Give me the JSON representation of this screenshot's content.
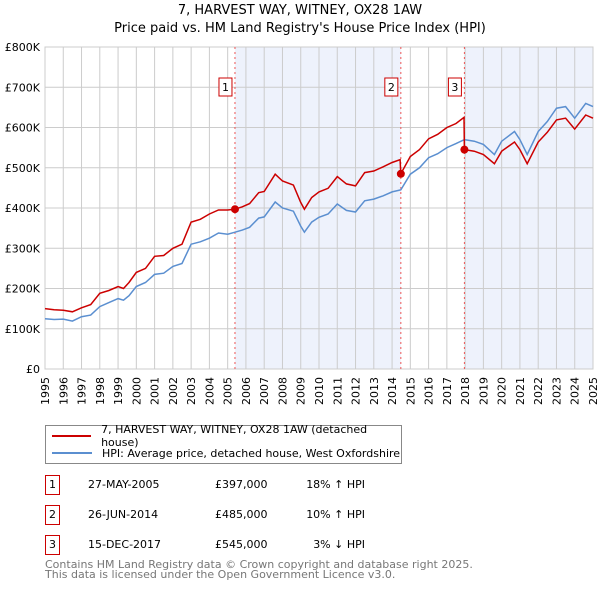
{
  "title": "7, HARVEST WAY, WITNEY, OX28 1AW",
  "subtitle": "Price paid vs. HM Land Registry's House Price Index (HPI)",
  "colors": {
    "property": "#cc0000",
    "hpi": "#5b8fd0",
    "shade": "#eef2fc",
    "grid": "#cccccc"
  },
  "chart_data": {
    "type": "line",
    "title": "Price paid vs. HM Land Registry's House Price Index (HPI)",
    "xlim": [
      1995,
      2025
    ],
    "ylim": [
      0,
      800000
    ],
    "grid": true,
    "y_ticks": [
      {
        "v": 0,
        "label": "£0"
      },
      {
        "v": 100000,
        "label": "£100K"
      },
      {
        "v": 200000,
        "label": "£200K"
      },
      {
        "v": 300000,
        "label": "£300K"
      },
      {
        "v": 400000,
        "label": "£400K"
      },
      {
        "v": 500000,
        "label": "£500K"
      },
      {
        "v": 600000,
        "label": "£600K"
      },
      {
        "v": 700000,
        "label": "£700K"
      },
      {
        "v": 800000,
        "label": "£800K"
      }
    ],
    "x_ticks": [
      "1995",
      "1996",
      "1997",
      "1998",
      "1999",
      "2000",
      "2001",
      "2002",
      "2003",
      "2004",
      "2005",
      "2006",
      "2007",
      "2008",
      "2009",
      "2010",
      "2011",
      "2012",
      "2013",
      "2014",
      "2015",
      "2016",
      "2017",
      "2018",
      "2019",
      "2020",
      "2021",
      "2022",
      "2023",
      "2024",
      "2025"
    ],
    "series": [
      {
        "name": "7, HARVEST WAY, WITNEY, OX28 1AW (detached house)",
        "key": "property",
        "points": [
          [
            1995,
            150
          ],
          [
            1995.5,
            147
          ],
          [
            1996,
            146
          ],
          [
            1996.5,
            142
          ],
          [
            1997,
            152
          ],
          [
            1997.5,
            160
          ],
          [
            1998,
            188
          ],
          [
            1998.5,
            195
          ],
          [
            1999,
            205
          ],
          [
            1999.3,
            200
          ],
          [
            1999.6,
            215
          ],
          [
            2000,
            240
          ],
          [
            2000.5,
            250
          ],
          [
            2001,
            280
          ],
          [
            2001.5,
            282
          ],
          [
            2002,
            300
          ],
          [
            2002.5,
            310
          ],
          [
            2003,
            365
          ],
          [
            2003.5,
            372
          ],
          [
            2004,
            385
          ],
          [
            2004.5,
            395
          ],
          [
            2005,
            395
          ],
          [
            2005.4,
            397
          ],
          [
            2005.8,
            403
          ],
          [
            2006.2,
            411
          ],
          [
            2006.7,
            438
          ],
          [
            2007,
            441
          ],
          [
            2007.6,
            484
          ],
          [
            2008,
            467
          ],
          [
            2008.6,
            457
          ],
          [
            2009,
            414
          ],
          [
            2009.2,
            397
          ],
          [
            2009.6,
            426
          ],
          [
            2010,
            440
          ],
          [
            2010.5,
            449
          ],
          [
            2011,
            478
          ],
          [
            2011.5,
            460
          ],
          [
            2012,
            455
          ],
          [
            2012.5,
            488
          ],
          [
            2013,
            492
          ],
          [
            2013.5,
            502
          ],
          [
            2014,
            513
          ],
          [
            2014.44,
            520
          ],
          [
            2014.48,
            485
          ],
          [
            2015,
            528
          ],
          [
            2015.5,
            545
          ],
          [
            2016,
            572
          ],
          [
            2016.5,
            583
          ],
          [
            2017,
            600
          ],
          [
            2017.5,
            610
          ],
          [
            2017.94,
            625
          ],
          [
            2017.96,
            545
          ],
          [
            2018.5,
            541
          ],
          [
            2019,
            533
          ],
          [
            2019.6,
            510
          ],
          [
            2020,
            541
          ],
          [
            2020.7,
            564
          ],
          [
            2021,
            545
          ],
          [
            2021.4,
            510
          ],
          [
            2022,
            564
          ],
          [
            2022.5,
            588
          ],
          [
            2023,
            619
          ],
          [
            2023.5,
            623
          ],
          [
            2024,
            596
          ],
          [
            2024.6,
            631
          ],
          [
            2025,
            623
          ]
        ]
      },
      {
        "name": "HPI: Average price, detached house, West Oxfordshire",
        "key": "hpi",
        "points": [
          [
            1995,
            125
          ],
          [
            1995.5,
            123
          ],
          [
            1996,
            124
          ],
          [
            1996.5,
            119
          ],
          [
            1997,
            130
          ],
          [
            1997.5,
            134
          ],
          [
            1998,
            155
          ],
          [
            1998.5,
            165
          ],
          [
            1999,
            175
          ],
          [
            1999.3,
            171
          ],
          [
            1999.6,
            182
          ],
          [
            2000,
            205
          ],
          [
            2000.5,
            215
          ],
          [
            2001,
            235
          ],
          [
            2001.5,
            238
          ],
          [
            2002,
            255
          ],
          [
            2002.5,
            262
          ],
          [
            2003,
            310
          ],
          [
            2003.5,
            316
          ],
          [
            2004,
            325
          ],
          [
            2004.5,
            338
          ],
          [
            2005,
            335
          ],
          [
            2005.4,
            340
          ],
          [
            2005.8,
            345
          ],
          [
            2006.2,
            352
          ],
          [
            2006.7,
            375
          ],
          [
            2007,
            378
          ],
          [
            2007.6,
            415
          ],
          [
            2008,
            400
          ],
          [
            2008.6,
            392
          ],
          [
            2009,
            355
          ],
          [
            2009.2,
            340
          ],
          [
            2009.6,
            365
          ],
          [
            2010,
            377
          ],
          [
            2010.5,
            385
          ],
          [
            2011,
            410
          ],
          [
            2011.5,
            394
          ],
          [
            2012,
            390
          ],
          [
            2012.5,
            418
          ],
          [
            2013,
            422
          ],
          [
            2013.5,
            430
          ],
          [
            2014,
            440
          ],
          [
            2014.48,
            445
          ],
          [
            2015,
            484
          ],
          [
            2015.5,
            500
          ],
          [
            2016,
            525
          ],
          [
            2016.5,
            535
          ],
          [
            2017,
            550
          ],
          [
            2017.5,
            560
          ],
          [
            2017.96,
            570
          ],
          [
            2018.5,
            566
          ],
          [
            2019,
            558
          ],
          [
            2019.6,
            533
          ],
          [
            2020,
            566
          ],
          [
            2020.7,
            590
          ],
          [
            2021,
            570
          ],
          [
            2021.4,
            533
          ],
          [
            2022,
            590
          ],
          [
            2022.5,
            615
          ],
          [
            2023,
            648
          ],
          [
            2023.5,
            652
          ],
          [
            2024,
            623
          ],
          [
            2024.6,
            660
          ],
          [
            2025,
            652
          ]
        ]
      }
    ],
    "value_unit": "£ thousands",
    "sales": [
      {
        "label": "1",
        "x": 2005.4,
        "value": 397
      },
      {
        "label": "2",
        "x": 2014.48,
        "value": 485
      },
      {
        "label": "3",
        "x": 2017.96,
        "value": 545
      }
    ]
  },
  "legend": {
    "property": "7, HARVEST WAY, WITNEY, OX28 1AW (detached house)",
    "hpi": "HPI: Average price, detached house, West Oxfordshire"
  },
  "transactions": [
    {
      "num": "1",
      "date": "27-MAY-2005",
      "price": "£397,000",
      "hpi": "18% ↑ HPI"
    },
    {
      "num": "2",
      "date": "26-JUN-2014",
      "price": "£485,000",
      "hpi": "10% ↑ HPI"
    },
    {
      "num": "3",
      "date": "15-DEC-2017",
      "price": "£545,000",
      "hpi": "3% ↓ HPI"
    }
  ],
  "footer": {
    "line1": "Contains HM Land Registry data © Crown copyright and database right 2025.",
    "line2": "This data is licensed under the Open Government Licence v3.0."
  }
}
